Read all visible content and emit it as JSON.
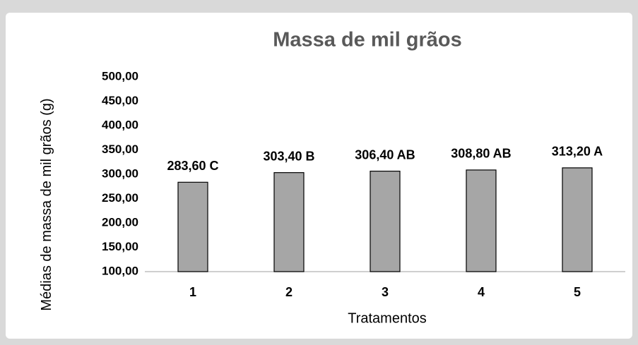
{
  "chart_data": {
    "type": "bar",
    "title": "Massa de mil grãos",
    "y_label": "Médias de massa de mil grãos (g)",
    "x_label": "Tratamentos",
    "categories": [
      "1",
      "2",
      "3",
      "4",
      "5"
    ],
    "values": [
      283.6,
      303.4,
      306.4,
      308.8,
      313.2
    ],
    "value_labels": [
      "283,60 C",
      "303,40 B",
      "306,40 AB",
      "308,80 AB",
      "313,20 A"
    ],
    "color": "#a6a6a6",
    "ylim": [
      100,
      500
    ],
    "yticks": [
      {
        "value": 100,
        "label": "100,00"
      },
      {
        "value": 150,
        "label": "150,00"
      },
      {
        "value": 200,
        "label": "200,00"
      },
      {
        "value": 250,
        "label": "250,00"
      },
      {
        "value": 300,
        "label": "300,00"
      },
      {
        "value": 350,
        "label": "350,00"
      },
      {
        "value": 400,
        "label": "400,00"
      },
      {
        "value": 450,
        "label": "450,00"
      },
      {
        "value": 500,
        "label": "500,00"
      }
    ],
    "grid": false
  }
}
